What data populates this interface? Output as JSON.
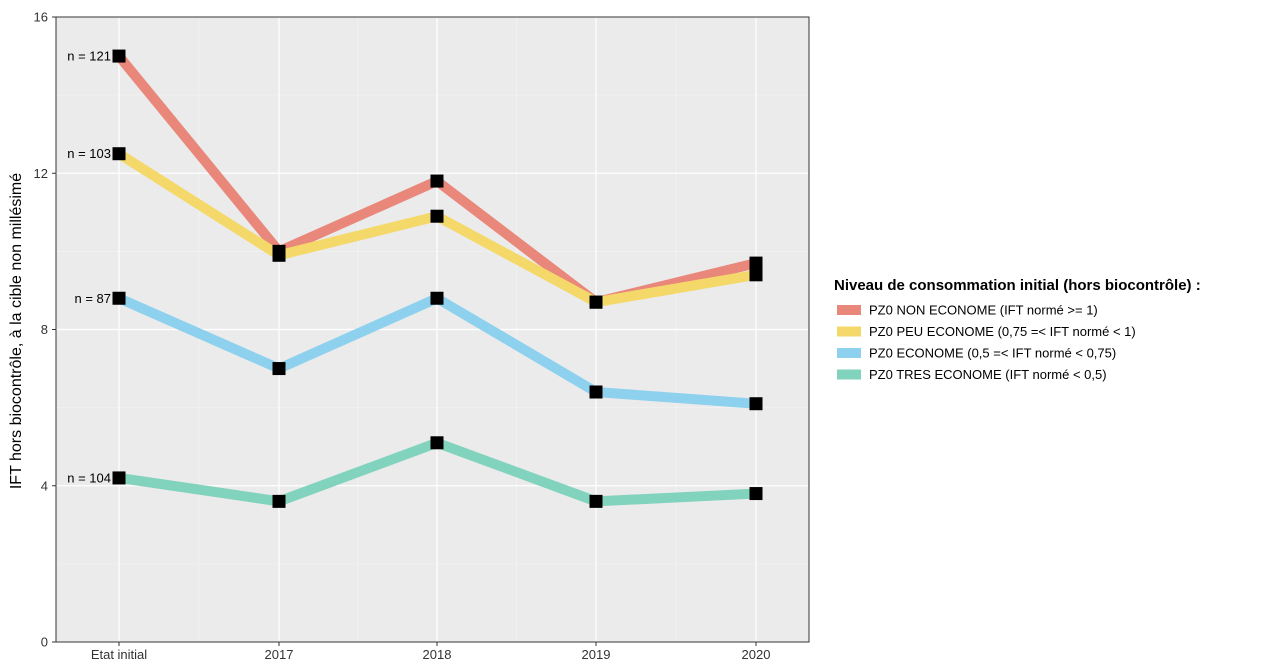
{
  "chart_data": {
    "type": "line",
    "title": "",
    "xlabel": "",
    "ylabel": "IFT hors biocontrôle, à la cible non millésimé",
    "categories": [
      "Etat initial",
      "2017",
      "2018",
      "2019",
      "2020"
    ],
    "ylim": [
      0,
      16
    ],
    "yticks": [
      0,
      4,
      8,
      12,
      16
    ],
    "grid": true,
    "legend": {
      "title": "Niveau de consommation initial (hors biocontrôle) :",
      "placement": "right"
    },
    "series": [
      {
        "name": "PZ0 NON ECONOME (IFT normé >= 1)",
        "color": "#E8877A",
        "values": [
          15.0,
          10.0,
          11.8,
          8.7,
          9.7
        ],
        "n_label": "n = 121"
      },
      {
        "name": "PZ0 PEU ECONOME (0,75 =< IFT normé < 1)",
        "color": "#F4D96A",
        "values": [
          12.5,
          9.9,
          10.9,
          8.7,
          9.4
        ],
        "n_label": "n = 103"
      },
      {
        "name": "PZ0 ECONOME (0,5 =< IFT normé < 0,75)",
        "color": "#8ED1EE",
        "values": [
          8.8,
          7.0,
          8.8,
          6.4,
          6.1
        ],
        "n_label": "n = 87"
      },
      {
        "name": "PZ0 TRES ECONOME (IFT normé < 0,5)",
        "color": "#82D3BD",
        "values": [
          4.2,
          3.6,
          5.1,
          3.6,
          3.8
        ],
        "n_label": "n = 104"
      }
    ]
  }
}
